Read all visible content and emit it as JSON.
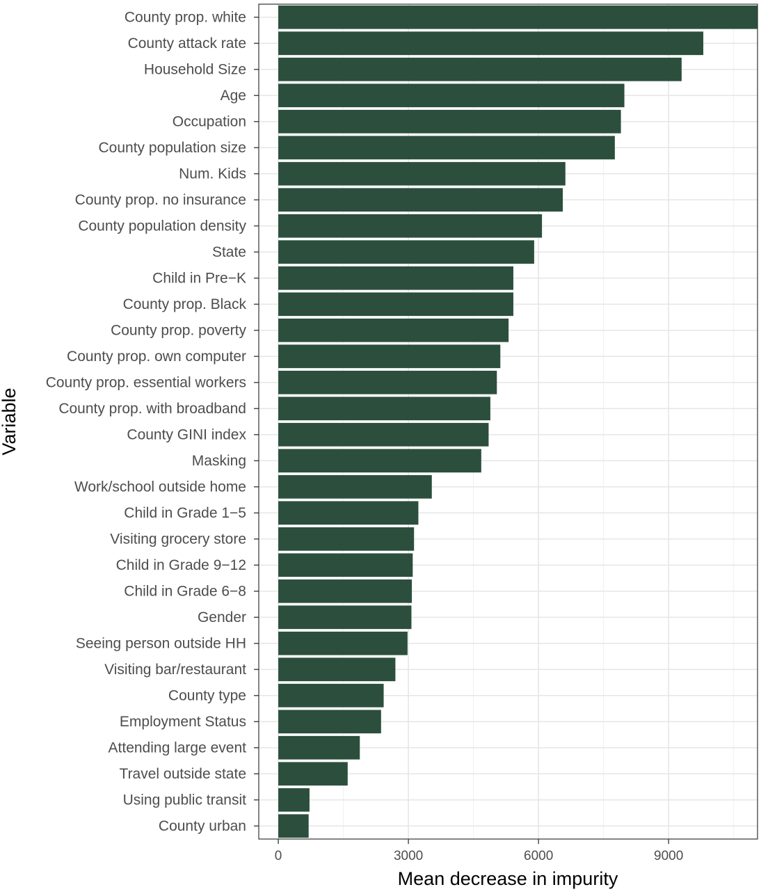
{
  "chart_data": {
    "type": "bar",
    "orientation": "horizontal",
    "xlabel": "Mean decrease in impurity",
    "ylabel": "Variable",
    "xlim": [
      -450,
      11050
    ],
    "xticks": [
      0,
      3000,
      6000,
      9000
    ],
    "xtick_labels": [
      "0",
      "3000",
      "6000",
      "9000"
    ],
    "grid": true,
    "bar_color": "#2c4f3d",
    "categories": [
      "County prop. white",
      "County attack rate",
      "Household Size",
      "Age",
      "Occupation",
      "County population size",
      "Num. Kids",
      "County prop. no insurance",
      "County population density",
      "State",
      "Child in Pre−K",
      "County prop. Black",
      "County prop. poverty",
      "County prop. own computer",
      "County prop. essential workers",
      "County prop. with broadband",
      "County GINI index",
      "Masking",
      "Work/school outside home",
      "Child in Grade 1−5",
      "Visiting grocery store",
      "Child in Grade 9−12",
      "Child in Grade 6−8",
      "Gender",
      "Seeing person outside HH",
      "Visiting bar/restaurant",
      "County type",
      "Employment Status",
      "Attending large event",
      "Travel outside state",
      "Using public transit",
      "County urban"
    ],
    "values": [
      11050,
      9800,
      9300,
      7980,
      7900,
      7760,
      6620,
      6560,
      6080,
      5900,
      5420,
      5420,
      5310,
      5120,
      5040,
      4890,
      4850,
      4680,
      3540,
      3230,
      3130,
      3100,
      3080,
      3070,
      2980,
      2700,
      2430,
      2370,
      1880,
      1600,
      720,
      700
    ]
  }
}
